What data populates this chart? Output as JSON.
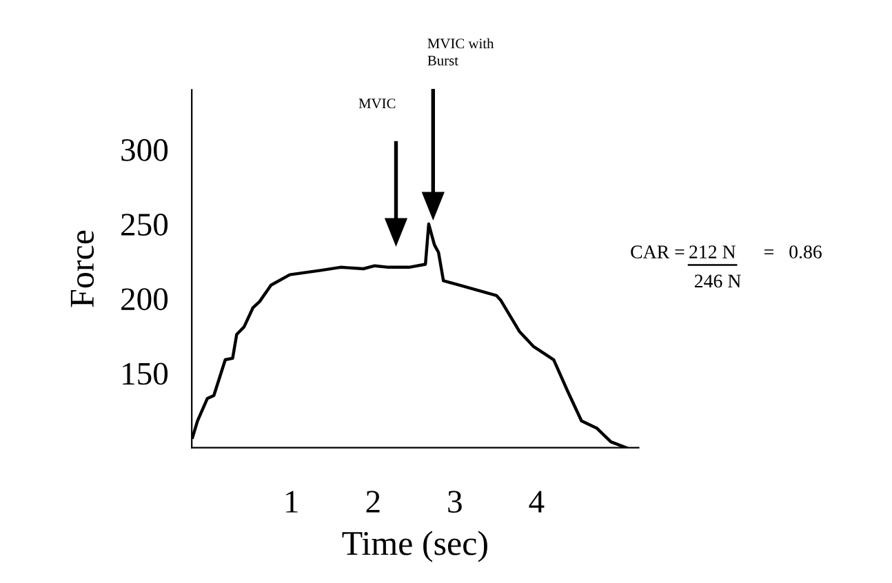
{
  "chart_data": {
    "type": "line",
    "xlabel": "Time (sec)",
    "ylabel": "Force",
    "x": [
      -0.21,
      -0.15,
      -0.03,
      0.05,
      0.19,
      0.28,
      0.33,
      0.42,
      0.53,
      0.61,
      0.75,
      0.98,
      1.37,
      1.6,
      1.88,
      2.02,
      2.19,
      2.44,
      2.64,
      2.68,
      2.75,
      2.8,
      2.86,
      3.06,
      3.51,
      3.56,
      3.79,
      3.96,
      4.21,
      4.38,
      4.55,
      4.74,
      4.91,
      5.1
    ],
    "series": [
      {
        "color": "#000000",
        "values": [
          107,
          118,
          133,
          135,
          159,
          160,
          176,
          181,
          194,
          198,
          209,
          216,
          219,
          221,
          220,
          222,
          221,
          221,
          223,
          250,
          236,
          231,
          212,
          209,
          202,
          199,
          178,
          168,
          159,
          138,
          118,
          113,
          104,
          100
        ]
      }
    ],
    "xlim": [
      -0.22,
      5.25
    ],
    "ylim": [
      100,
      340
    ],
    "xticks": [
      1,
      2,
      3,
      4
    ],
    "yticks": [
      150,
      200,
      250,
      300
    ],
    "grid": false,
    "legend": false,
    "marker": "none",
    "line_style": "solid",
    "annotations": [
      "MVIC",
      "MVIC with\nBurst",
      "CAR =",
      "212 N",
      "246 N",
      "=   0.86"
    ]
  }
}
